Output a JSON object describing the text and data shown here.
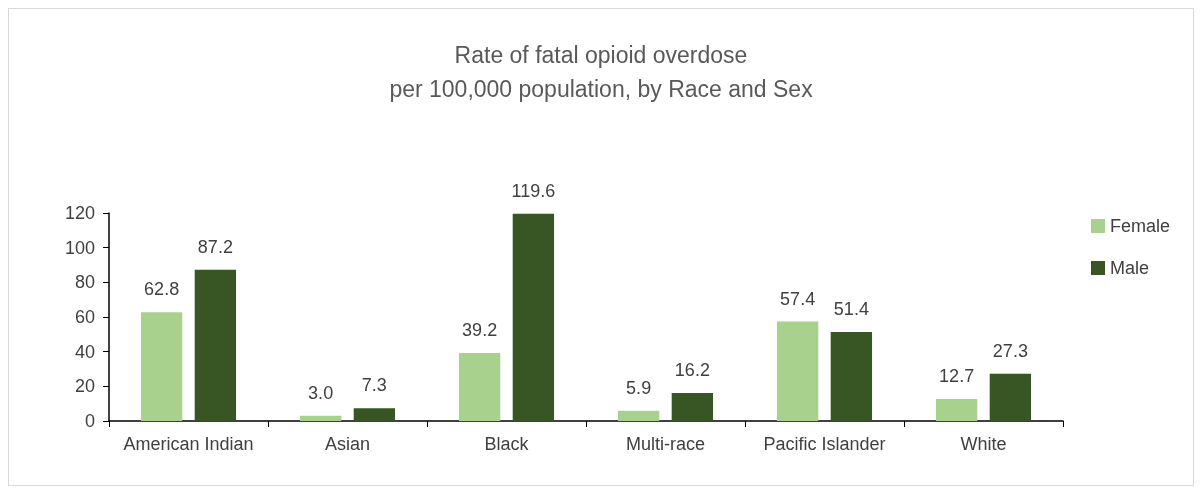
{
  "chart_data": {
    "type": "bar",
    "title": "Rate of fatal opioid overdose\nper 100,000 population, by Race and Sex",
    "categories": [
      "American Indian",
      "Asian",
      "Black",
      "Multi-race",
      "Pacific Islander",
      "White"
    ],
    "series": [
      {
        "name": "Female",
        "color": "#a9d18e",
        "values": [
          62.8,
          3.0,
          39.2,
          5.9,
          57.4,
          12.7
        ],
        "value_labels": [
          "62.8",
          "3.0",
          "39.2",
          "5.9",
          "57.4",
          "12.7"
        ]
      },
      {
        "name": "Male",
        "color": "#375623",
        "values": [
          87.2,
          7.3,
          119.6,
          16.2,
          51.4,
          27.3
        ],
        "value_labels": [
          "87.2",
          "7.3",
          "119.6",
          "16.2",
          "51.4",
          "27.3"
        ]
      }
    ],
    "ylim": [
      0,
      120
    ],
    "yticks": [
      0,
      20,
      40,
      60,
      80,
      100,
      120
    ],
    "grid": false,
    "legend": "right"
  }
}
